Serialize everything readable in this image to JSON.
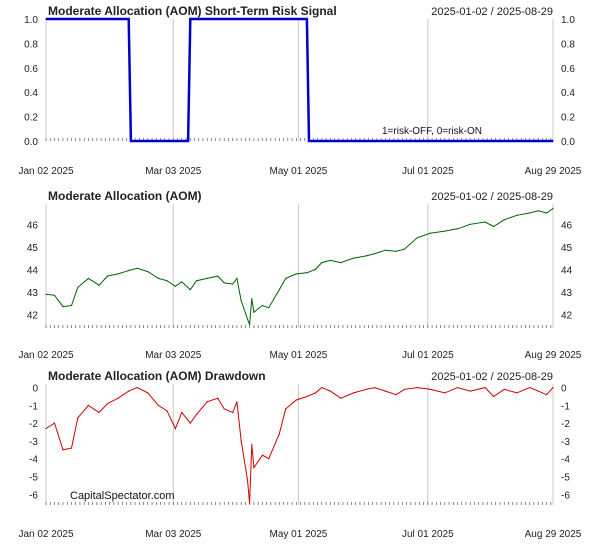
{
  "chart_data": [
    {
      "type": "line",
      "title": "Moderate Allocation (AOM) Short-Term Risk Signal",
      "date_range": "2025-01-02 / 2025-08-29",
      "annotation": "1=risk-OFF, 0=risk-ON",
      "color": "#0000cc",
      "ylim": [
        0,
        1
      ],
      "yticks": [
        "0.0",
        "0.2",
        "0.4",
        "0.6",
        "0.8",
        "1.0"
      ],
      "x": [
        "2025-01-02",
        "2025-02-10",
        "2025-02-11",
        "2025-03-10",
        "2025-03-11",
        "2025-05-05",
        "2025-05-06",
        "2025-08-29"
      ],
      "y": [
        1,
        1,
        0,
        0,
        1,
        1,
        0,
        0
      ]
    },
    {
      "type": "line",
      "title": "Moderate Allocation (AOM)",
      "date_range": "2025-01-02 / 2025-08-29",
      "color": "#006400",
      "ylim": [
        41.4,
        46.9
      ],
      "yticks": [
        "42",
        "43",
        "44",
        "45",
        "46"
      ],
      "x": [
        "2025-01-02",
        "2025-01-06",
        "2025-01-10",
        "2025-01-14",
        "2025-01-17",
        "2025-01-22",
        "2025-01-27",
        "2025-01-31",
        "2025-02-05",
        "2025-02-10",
        "2025-02-14",
        "2025-02-19",
        "2025-02-24",
        "2025-02-28",
        "2025-03-04",
        "2025-03-07",
        "2025-03-11",
        "2025-03-14",
        "2025-03-19",
        "2025-03-24",
        "2025-03-27",
        "2025-03-31",
        "2025-04-02",
        "2025-04-04",
        "2025-04-07",
        "2025-04-08",
        "2025-04-09",
        "2025-04-10",
        "2025-04-14",
        "2025-04-17",
        "2025-04-22",
        "2025-04-25",
        "2025-04-30",
        "2025-05-05",
        "2025-05-09",
        "2025-05-12",
        "2025-05-16",
        "2025-05-21",
        "2025-05-27",
        "2025-06-02",
        "2025-06-06",
        "2025-06-11",
        "2025-06-16",
        "2025-06-20",
        "2025-06-26",
        "2025-07-02",
        "2025-07-09",
        "2025-07-15",
        "2025-07-21",
        "2025-07-28",
        "2025-08-01",
        "2025-08-06",
        "2025-08-12",
        "2025-08-18",
        "2025-08-22",
        "2025-08-26",
        "2025-08-29"
      ],
      "y": [
        42.9,
        42.85,
        42.35,
        42.4,
        43.2,
        43.6,
        43.3,
        43.7,
        43.8,
        43.95,
        44.05,
        43.9,
        43.6,
        43.5,
        43.25,
        43.45,
        43.1,
        43.5,
        43.6,
        43.7,
        43.4,
        43.35,
        43.6,
        42.6,
        41.8,
        41.55,
        42.7,
        42.1,
        42.4,
        42.3,
        43.1,
        43.6,
        43.8,
        43.85,
        44.0,
        44.3,
        44.4,
        44.3,
        44.5,
        44.6,
        44.7,
        44.85,
        44.8,
        44.9,
        45.4,
        45.6,
        45.7,
        45.8,
        46.0,
        46.1,
        45.9,
        46.2,
        46.4,
        46.5,
        46.6,
        46.5,
        46.7
      ]
    },
    {
      "type": "line",
      "title": "Moderate Allocation (AOM) Drawdown",
      "date_range": "2025-01-02 / 2025-08-29",
      "watermark": "CapitalSpectator.com",
      "color": "#cc0000",
      "ylim": [
        -6.6,
        0.2
      ],
      "yticks": [
        "-6",
        "-5",
        "-4",
        "-3",
        "-2",
        "-1",
        "0"
      ],
      "x": [
        "2025-01-02",
        "2025-01-06",
        "2025-01-10",
        "2025-01-14",
        "2025-01-17",
        "2025-01-22",
        "2025-01-27",
        "2025-01-31",
        "2025-02-05",
        "2025-02-10",
        "2025-02-14",
        "2025-02-19",
        "2025-02-24",
        "2025-02-28",
        "2025-03-04",
        "2025-03-07",
        "2025-03-11",
        "2025-03-14",
        "2025-03-19",
        "2025-03-24",
        "2025-03-27",
        "2025-03-31",
        "2025-04-02",
        "2025-04-04",
        "2025-04-07",
        "2025-04-08",
        "2025-04-09",
        "2025-04-10",
        "2025-04-14",
        "2025-04-17",
        "2025-04-22",
        "2025-04-25",
        "2025-04-30",
        "2025-05-05",
        "2025-05-09",
        "2025-05-12",
        "2025-05-16",
        "2025-05-21",
        "2025-05-27",
        "2025-06-02",
        "2025-06-06",
        "2025-06-11",
        "2025-06-16",
        "2025-06-20",
        "2025-06-26",
        "2025-07-02",
        "2025-07-09",
        "2025-07-15",
        "2025-07-21",
        "2025-07-28",
        "2025-08-01",
        "2025-08-06",
        "2025-08-12",
        "2025-08-18",
        "2025-08-22",
        "2025-08-26",
        "2025-08-29"
      ],
      "y": [
        -2.3,
        -2.0,
        -3.5,
        -3.4,
        -1.7,
        -1.0,
        -1.4,
        -0.9,
        -0.6,
        -0.2,
        0,
        -0.3,
        -1.0,
        -1.3,
        -2.3,
        -1.4,
        -2.0,
        -1.5,
        -0.8,
        -0.6,
        -1.2,
        -1.4,
        -0.8,
        -3.0,
        -5.2,
        -6.5,
        -3.2,
        -4.5,
        -3.8,
        -4.0,
        -2.6,
        -1.2,
        -0.7,
        -0.5,
        -0.3,
        0,
        -0.2,
        -0.6,
        -0.3,
        -0.1,
        0,
        -0.2,
        -0.4,
        -0.1,
        0,
        -0.1,
        -0.3,
        0,
        -0.2,
        0,
        -0.5,
        -0.1,
        -0.3,
        0,
        -0.2,
        -0.4,
        0
      ]
    }
  ],
  "x_axis": {
    "range": [
      "2025-01-02",
      "2025-08-29"
    ],
    "tick_dates": [
      "2025-01-02",
      "2025-03-03",
      "2025-05-01",
      "2025-07-01",
      "2025-08-29"
    ],
    "tick_labels": [
      "Jan 02 2025",
      "Mar 03 2025",
      "May 01 2025",
      "Jul 01 2025",
      "Aug 29 2025"
    ]
  },
  "grid": true
}
